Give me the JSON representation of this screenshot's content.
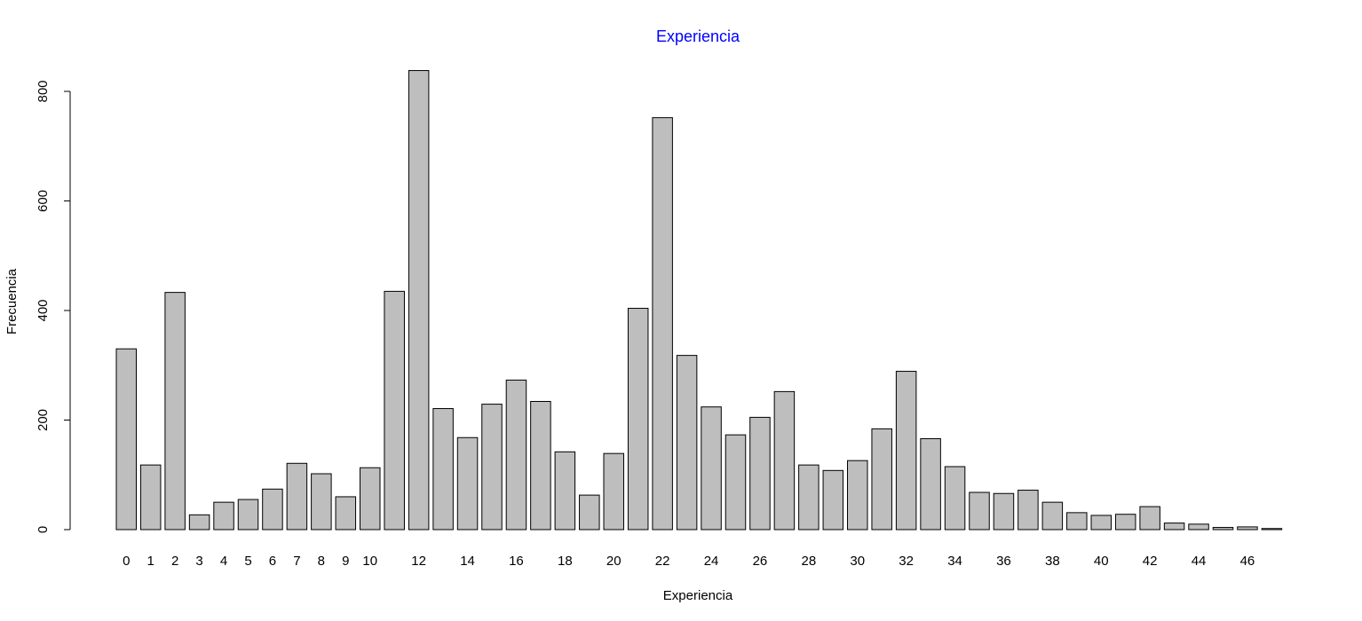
{
  "chart_data": {
    "type": "bar",
    "title": "Experiencia",
    "xlabel": "Experiencia",
    "ylabel": "Frecuencia",
    "categories": [
      "0",
      "1",
      "2",
      "3",
      "4",
      "5",
      "6",
      "7",
      "8",
      "9",
      "10",
      "11",
      "12",
      "13",
      "14",
      "15",
      "16",
      "17",
      "18",
      "19",
      "20",
      "21",
      "22",
      "23",
      "24",
      "25",
      "26",
      "27",
      "28",
      "29",
      "30",
      "31",
      "32",
      "33",
      "34",
      "35",
      "36",
      "37",
      "38",
      "39",
      "40",
      "41",
      "42",
      "43",
      "44",
      "45",
      "46",
      "47"
    ],
    "shown_tick_labels": [
      "0",
      "1",
      "2",
      "3",
      "4",
      "5",
      "6",
      "7",
      "8",
      "9",
      "10",
      "12",
      "14",
      "16",
      "18",
      "20",
      "22",
      "24",
      "26",
      "28",
      "30",
      "32",
      "34",
      "36",
      "38",
      "40",
      "42",
      "44",
      "46"
    ],
    "values": [
      330,
      118,
      433,
      27,
      50,
      55,
      74,
      121,
      102,
      60,
      113,
      435,
      838,
      221,
      168,
      229,
      273,
      234,
      142,
      63,
      139,
      404,
      752,
      318,
      224,
      173,
      205,
      252,
      118,
      108,
      126,
      184,
      289,
      166,
      115,
      68,
      66,
      72,
      50,
      31,
      26,
      28,
      42,
      12,
      10,
      4,
      5,
      2
    ],
    "ylim": [
      0,
      800
    ],
    "yticks": [
      0,
      200,
      400,
      600,
      800
    ],
    "bar_color": "#bebebe",
    "title_color": "#0000ff",
    "grid": false
  }
}
